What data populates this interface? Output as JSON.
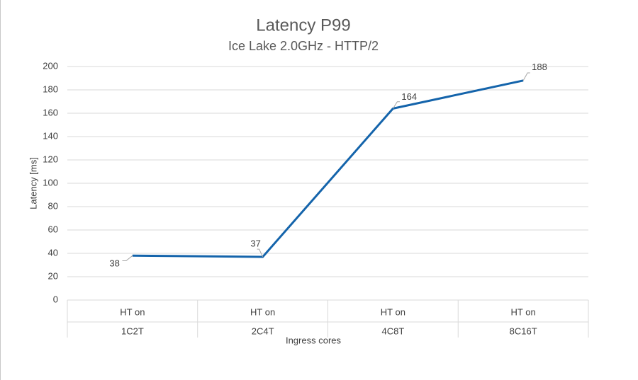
{
  "chart_data": {
    "type": "line",
    "title": "Latency P99",
    "subtitle": "Ice Lake 2.0GHz - HTTP/2",
    "x_label": "Ingress cores",
    "y_label": "Latency [ms]",
    "category_groups": [
      "HT on",
      "HT on",
      "HT on",
      "HT on"
    ],
    "categories": [
      "1C2T",
      "2C4T",
      "4C8T",
      "8C16T"
    ],
    "series": [
      {
        "values": [
          38,
          37,
          164,
          188
        ],
        "color": "#1464ab"
      }
    ],
    "ylim": [
      0,
      200
    ],
    "yticks": [
      0,
      20,
      40,
      60,
      80,
      100,
      120,
      140,
      160,
      180,
      200
    ],
    "grid": true
  }
}
